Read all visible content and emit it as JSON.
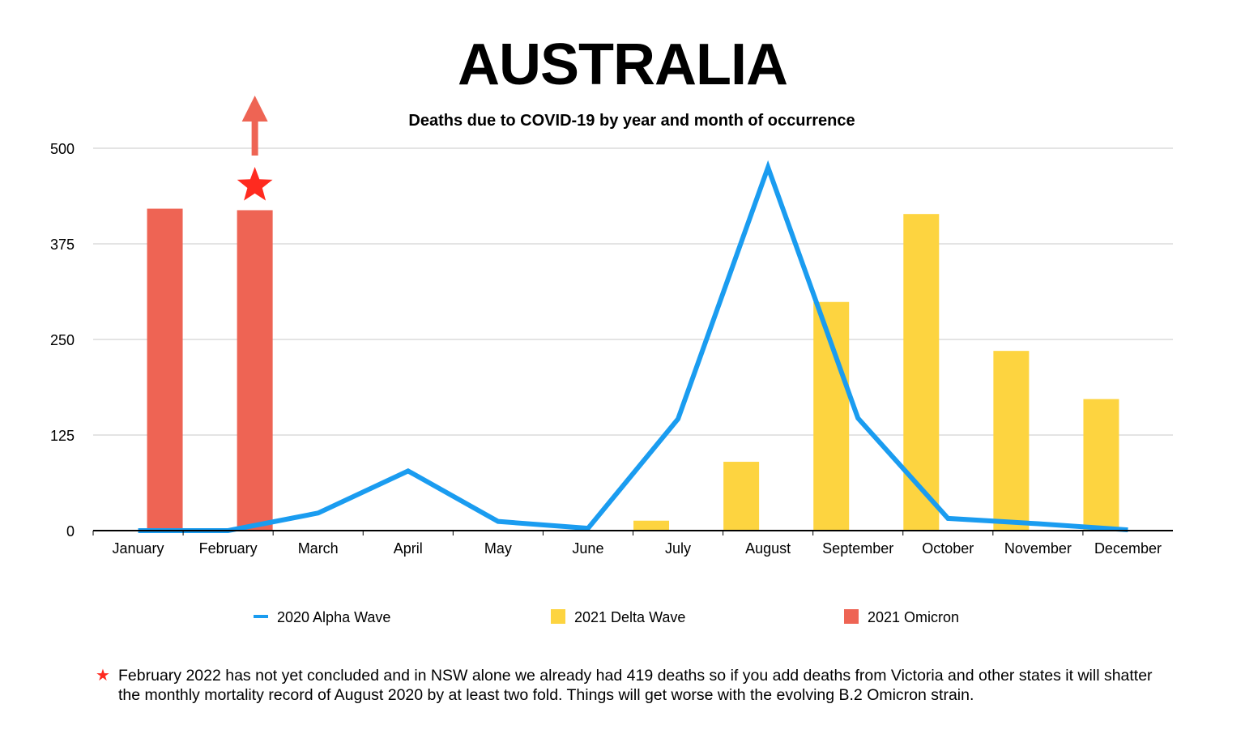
{
  "header": {
    "title": "AUSTRALIA"
  },
  "chart_data": {
    "type": "bar",
    "subtitle": "Deaths due to COVID-19 by year and month of occurrence",
    "categories": [
      "January",
      "February",
      "March",
      "April",
      "May",
      "June",
      "July",
      "August",
      "September",
      "October",
      "November",
      "December"
    ],
    "ylim": [
      0,
      500
    ],
    "yticks": [
      "0",
      "125",
      "250",
      "375",
      "500"
    ],
    "grid": true,
    "legend_position": "bottom",
    "series": [
      {
        "name": "2020 Alpha Wave",
        "kind": "line",
        "color": "#1a9cf0",
        "values": [
          0,
          0,
          23,
          78,
          12,
          3,
          146,
          475,
          147,
          16,
          9,
          1
        ]
      },
      {
        "name": "2021 Delta Wave",
        "kind": "bar",
        "color": "#fdd440",
        "values": [
          1,
          0,
          0,
          1,
          0,
          0,
          13,
          90,
          299,
          414,
          235,
          172
        ]
      },
      {
        "name": "2021 Omicron",
        "kind": "bar",
        "color": "#ee6454",
        "values": [
          421,
          419,
          null,
          null,
          null,
          null,
          null,
          null,
          null,
          null,
          null,
          null
        ]
      }
    ],
    "annotations": [
      {
        "category": "February",
        "marker": "star",
        "arrow": "up",
        "color": "#ff2a1f",
        "arrow_color": "#ee6454"
      }
    ]
  },
  "footnote": {
    "marker": "★",
    "text": "February 2022 has not yet concluded and in NSW alone we already had 419 deaths so if you add deaths from Victoria and other states it will shatter the monthly mortality record of August 2020 by at least two fold. Things will get worse with the evolving B.2 Omicron strain."
  }
}
